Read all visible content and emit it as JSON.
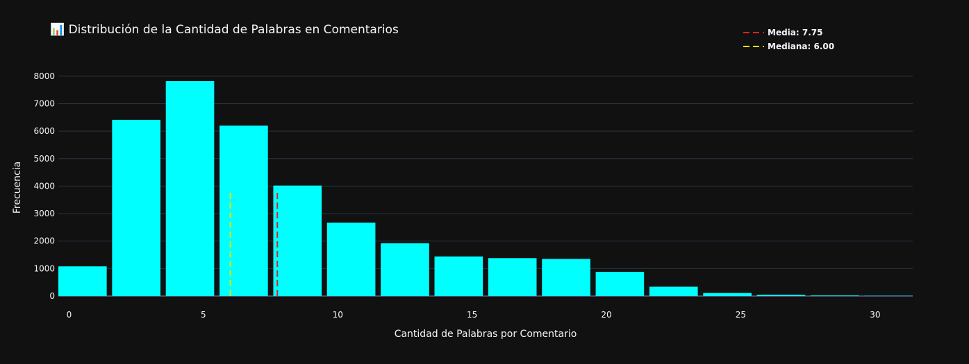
{
  "header": {
    "title": "📊 Distribución de la Cantidad de Palabras en Comentarios"
  },
  "legend": {
    "items": [
      {
        "label": "Media: 7.75",
        "color": "#dd2222"
      },
      {
        "label": "Mediana: 6.00",
        "color": "#e5e500"
      }
    ]
  },
  "colors": {
    "bar": "#00ffff",
    "grid": "#283442",
    "background": "#111111"
  },
  "chart_data": {
    "type": "bar",
    "title": "📊 Distribución de la Cantidad de Palabras en Comentarios",
    "xlabel": "Cantidad de Palabras por Comentario",
    "ylabel": "Frecuencia",
    "xlim": [
      -0.4,
      31.4
    ],
    "ylim": [
      0,
      8400
    ],
    "x_ticks": [
      0,
      5,
      10,
      15,
      20,
      25,
      30
    ],
    "y_ticks": [
      0,
      1000,
      2000,
      3000,
      4000,
      5000,
      6000,
      7000,
      8000
    ],
    "bins": [
      {
        "start": -0.5,
        "end": 1.5,
        "value": 1080
      },
      {
        "start": 1.5,
        "end": 3.5,
        "value": 6410
      },
      {
        "start": 3.5,
        "end": 5.5,
        "value": 7820
      },
      {
        "start": 5.5,
        "end": 7.5,
        "value": 6200
      },
      {
        "start": 7.5,
        "end": 9.5,
        "value": 4020
      },
      {
        "start": 9.5,
        "end": 11.5,
        "value": 2670
      },
      {
        "start": 11.5,
        "end": 13.5,
        "value": 1920
      },
      {
        "start": 13.5,
        "end": 15.5,
        "value": 1440
      },
      {
        "start": 15.5,
        "end": 17.5,
        "value": 1380
      },
      {
        "start": 17.5,
        "end": 19.5,
        "value": 1350
      },
      {
        "start": 19.5,
        "end": 21.5,
        "value": 880
      },
      {
        "start": 21.5,
        "end": 23.5,
        "value": 340
      },
      {
        "start": 23.5,
        "end": 25.5,
        "value": 110
      },
      {
        "start": 25.5,
        "end": 27.5,
        "value": 45
      },
      {
        "start": 27.5,
        "end": 29.5,
        "value": 20
      },
      {
        "start": 29.5,
        "end": 31.5,
        "value": 8
      }
    ],
    "vlines": [
      {
        "name": "Media: 7.75",
        "x": 7.75,
        "y_top": 3900,
        "color": "#dd2222",
        "dash": "dashed"
      },
      {
        "name": "Mediana: 6.00",
        "x": 6.0,
        "y_top": 3900,
        "color": "#e5e500",
        "dash": "dashed"
      }
    ],
    "grid": true,
    "legend_position": "top-right"
  }
}
